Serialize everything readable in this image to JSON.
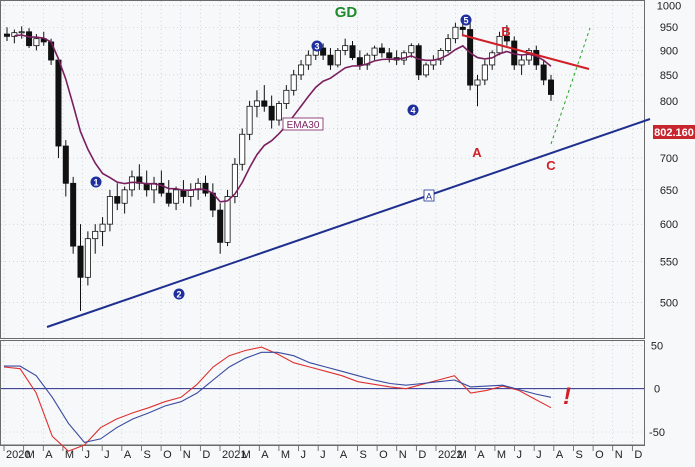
{
  "chart_data": [
    {
      "type": "candlestick",
      "title": "GD",
      "price_axis": {
        "ylim": [
          460,
          1010
        ],
        "ticks": [
          500,
          550,
          600,
          650,
          700,
          750,
          800,
          850,
          900,
          950,
          1000
        ],
        "scale": "log"
      },
      "last_price_label": "802.160",
      "time_axis": {
        "ticks": [
          "2020",
          "M",
          "A",
          "M",
          "J",
          "J",
          "A",
          "S",
          "O",
          "N",
          "D",
          "2021",
          "M",
          "A",
          "M",
          "J",
          "J",
          "A",
          "S",
          "O",
          "N",
          "D",
          "2022",
          "M",
          "A",
          "M",
          "J",
          "J",
          "A",
          "S",
          "O",
          "N",
          "D"
        ]
      },
      "ema_label": "EMA30",
      "wave_labels": [
        {
          "label": "1",
          "style": "circle"
        },
        {
          "label": "2",
          "style": "circle"
        },
        {
          "label": "3",
          "style": "circle"
        },
        {
          "label": "4",
          "style": "circle"
        },
        {
          "label": "5",
          "style": "circle"
        },
        {
          "label": "A",
          "style": "red"
        },
        {
          "label": "B",
          "style": "red"
        },
        {
          "label": "C",
          "style": "red"
        },
        {
          "label": "A",
          "style": "boxed"
        }
      ],
      "candles_approx": [
        [
          1,
          935,
          950,
          920,
          930
        ],
        [
          2,
          930,
          945,
          915,
          938
        ],
        [
          3,
          938,
          952,
          925,
          940
        ],
        [
          4,
          940,
          948,
          905,
          910
        ],
        [
          5,
          910,
          935,
          900,
          925
        ],
        [
          6,
          925,
          940,
          910,
          918
        ],
        [
          7,
          918,
          925,
          870,
          880
        ],
        [
          8,
          880,
          885,
          700,
          720
        ],
        [
          9,
          720,
          730,
          640,
          660
        ],
        [
          10,
          660,
          670,
          560,
          570
        ],
        [
          11,
          570,
          600,
          490,
          530
        ],
        [
          12,
          530,
          590,
          520,
          580
        ],
        [
          13,
          580,
          600,
          560,
          590
        ],
        [
          14,
          590,
          610,
          570,
          600
        ],
        [
          15,
          600,
          650,
          590,
          640
        ],
        [
          16,
          640,
          660,
          620,
          630
        ],
        [
          17,
          630,
          655,
          615,
          650
        ],
        [
          18,
          650,
          680,
          640,
          670
        ],
        [
          19,
          670,
          690,
          650,
          660
        ],
        [
          20,
          660,
          680,
          640,
          650
        ],
        [
          21,
          650,
          670,
          630,
          660
        ],
        [
          22,
          660,
          680,
          640,
          645
        ],
        [
          23,
          645,
          665,
          625,
          630
        ],
        [
          24,
          630,
          655,
          620,
          650
        ],
        [
          25,
          650,
          665,
          630,
          640
        ],
        [
          26,
          640,
          660,
          625,
          650
        ],
        [
          27,
          650,
          668,
          635,
          660
        ],
        [
          28,
          660,
          672,
          640,
          645
        ],
        [
          29,
          645,
          660,
          610,
          620
        ],
        [
          30,
          620,
          630,
          560,
          575
        ],
        [
          31,
          575,
          650,
          570,
          640
        ],
        [
          32,
          640,
          700,
          630,
          690
        ],
        [
          33,
          690,
          750,
          680,
          740
        ],
        [
          34,
          740,
          800,
          730,
          790
        ],
        [
          35,
          790,
          820,
          770,
          800
        ],
        [
          36,
          800,
          830,
          780,
          790
        ],
        [
          37,
          790,
          810,
          750,
          765
        ],
        [
          38,
          765,
          800,
          755,
          795
        ],
        [
          39,
          795,
          830,
          785,
          820
        ],
        [
          40,
          820,
          860,
          810,
          850
        ],
        [
          41,
          850,
          880,
          840,
          870
        ],
        [
          42,
          870,
          900,
          860,
          890
        ],
        [
          43,
          890,
          910,
          880,
          905
        ],
        [
          44,
          905,
          915,
          880,
          890
        ],
        [
          45,
          890,
          905,
          860,
          870
        ],
        [
          46,
          870,
          905,
          865,
          900
        ],
        [
          47,
          900,
          925,
          890,
          910
        ],
        [
          48,
          910,
          920,
          880,
          885
        ],
        [
          49,
          885,
          900,
          860,
          870
        ],
        [
          50,
          870,
          895,
          860,
          890
        ],
        [
          51,
          890,
          910,
          880,
          905
        ],
        [
          52,
          905,
          915,
          885,
          895
        ],
        [
          53,
          895,
          905,
          875,
          885
        ],
        [
          54,
          885,
          900,
          870,
          880
        ],
        [
          55,
          880,
          900,
          870,
          895
        ],
        [
          56,
          895,
          915,
          885,
          910
        ],
        [
          57,
          910,
          915,
          840,
          850
        ],
        [
          58,
          850,
          875,
          845,
          870
        ],
        [
          59,
          870,
          890,
          860,
          880
        ],
        [
          60,
          880,
          905,
          870,
          900
        ],
        [
          61,
          900,
          935,
          895,
          925
        ],
        [
          62,
          925,
          960,
          915,
          950
        ],
        [
          63,
          950,
          975,
          930,
          945
        ],
        [
          64,
          945,
          960,
          820,
          830
        ],
        [
          65,
          830,
          850,
          790,
          840
        ],
        [
          66,
          840,
          880,
          830,
          870
        ],
        [
          67,
          870,
          900,
          860,
          895
        ],
        [
          68,
          895,
          940,
          890,
          930
        ],
        [
          69,
          930,
          955,
          910,
          920
        ],
        [
          70,
          920,
          930,
          860,
          870
        ],
        [
          71,
          870,
          890,
          850,
          880
        ],
        [
          72,
          880,
          905,
          870,
          900
        ],
        [
          73,
          900,
          910,
          860,
          870
        ],
        [
          74,
          870,
          880,
          830,
          840
        ],
        [
          75,
          840,
          850,
          800,
          812
        ]
      ]
    },
    {
      "type": "line",
      "title": "",
      "ylim": [
        -65,
        55
      ],
      "y_ticks": [
        50,
        0,
        -50
      ],
      "series": [
        {
          "name": "",
          "color": "#e03030",
          "values": [
            25,
            23,
            -5,
            -55,
            -72,
            -65,
            -45,
            -35,
            -28,
            -22,
            -15,
            -10,
            5,
            25,
            38,
            44,
            48,
            40,
            30,
            25,
            20,
            15,
            8,
            5,
            2,
            0,
            5,
            10,
            15,
            -5,
            -2,
            3,
            -2,
            -12,
            -22
          ]
        },
        {
          "name": "",
          "color": "#3a4aa0",
          "values": [
            26,
            26,
            15,
            -10,
            -40,
            -62,
            -58,
            -45,
            -35,
            -28,
            -20,
            -15,
            -5,
            10,
            25,
            35,
            42,
            42,
            38,
            30,
            25,
            20,
            15,
            10,
            6,
            4,
            6,
            8,
            10,
            2,
            3,
            4,
            -1,
            -6,
            -10
          ]
        }
      ]
    }
  ],
  "annotation": {
    "exclamation": "!"
  }
}
